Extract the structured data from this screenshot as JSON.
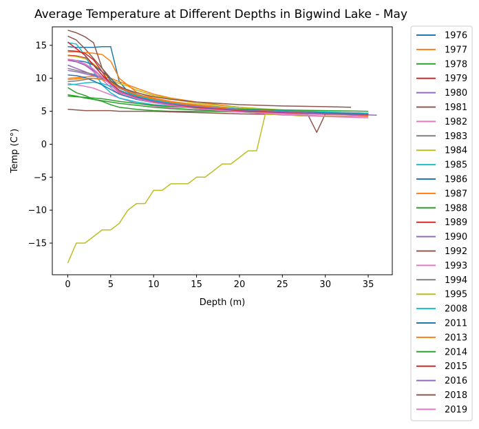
{
  "chart_data": {
    "type": "line",
    "title": "Average Temperature at Different Depths in Bigwind Lake - May",
    "xlabel": "Depth (m)",
    "ylabel": "Temp (C°)",
    "xlim": [
      -1.8,
      37.8
    ],
    "ylim": [
      -19.8,
      17.8
    ],
    "xticks": [
      0,
      5,
      10,
      15,
      20,
      25,
      30,
      35
    ],
    "yticks": [
      -15,
      -10,
      -5,
      0,
      5,
      10,
      15
    ],
    "xtick_labels": [
      "0",
      "5",
      "10",
      "15",
      "20",
      "25",
      "30",
      "35"
    ],
    "ytick_labels": [
      "−15",
      "−10",
      "−5",
      "0",
      "5",
      "10",
      "15"
    ],
    "grid": false,
    "legend_position": "outside-right",
    "series": [
      {
        "name": "1976",
        "color": "#1f77b4",
        "x": [
          0,
          1,
          2,
          3,
          4,
          5,
          6,
          7,
          8,
          10,
          12,
          15,
          20,
          25,
          30,
          35
        ],
        "y": [
          14.8,
          14.7,
          14.7,
          14.7,
          14.8,
          14.8,
          9.5,
          8.0,
          7.2,
          6.6,
          6.2,
          5.7,
          5.3,
          5.0,
          4.8,
          4.7
        ]
      },
      {
        "name": "1977",
        "color": "#ff7f0e",
        "x": [
          0,
          1,
          2,
          3,
          4,
          5,
          6,
          7,
          8,
          10,
          12,
          15,
          20,
          25,
          30,
          35
        ],
        "y": [
          10.0,
          10.1,
          10.2,
          10.3,
          10.2,
          10.0,
          9.5,
          9.0,
          8.5,
          7.6,
          7.0,
          6.4,
          5.6,
          5.1,
          4.7,
          4.4
        ]
      },
      {
        "name": "1978",
        "color": "#2ca02c",
        "x": [
          0,
          1,
          2,
          3,
          4,
          5,
          6,
          8,
          10,
          12,
          15,
          20,
          25,
          30,
          35
        ],
        "y": [
          8.6,
          7.8,
          7.4,
          6.8,
          6.5,
          6.0,
          5.6,
          5.3,
          5.1,
          5.0,
          5.0,
          4.9,
          4.8,
          4.7,
          4.6
        ]
      },
      {
        "name": "1979",
        "color": "#d62728",
        "x": [
          0,
          1,
          2,
          3,
          4,
          5,
          6,
          8,
          10,
          12,
          15,
          20,
          25,
          30,
          35
        ],
        "y": [
          13.5,
          13.4,
          13.1,
          12.0,
          10.5,
          9.2,
          8.2,
          7.2,
          6.6,
          6.2,
          5.8,
          5.3,
          5.0,
          4.8,
          4.7
        ]
      },
      {
        "name": "1980",
        "color": "#9467bd",
        "x": [
          0,
          1,
          2,
          3,
          4,
          5,
          6,
          8,
          10,
          12,
          15,
          20,
          25,
          30,
          35
        ],
        "y": [
          12.0,
          11.5,
          11.0,
          10.5,
          10.0,
          9.3,
          8.5,
          7.4,
          6.7,
          6.3,
          5.8,
          5.3,
          5.0,
          4.8,
          4.6
        ]
      },
      {
        "name": "1981",
        "color": "#8c564b",
        "x": [
          0,
          1,
          2,
          3,
          4,
          5,
          6,
          8,
          10,
          12,
          15,
          20,
          25,
          30,
          35
        ],
        "y": [
          16.4,
          15.8,
          14.5,
          13.0,
          11.5,
          10.0,
          8.7,
          7.5,
          6.8,
          6.3,
          5.9,
          5.3,
          5.0,
          4.8,
          4.6
        ]
      },
      {
        "name": "1982",
        "color": "#e377c2",
        "x": [
          0,
          1,
          2,
          3,
          4,
          5,
          6,
          8,
          10,
          12,
          15,
          20,
          25,
          30,
          35
        ],
        "y": [
          9.2,
          9.0,
          8.8,
          8.5,
          8.0,
          7.5,
          7.0,
          6.2,
          5.8,
          5.5,
          5.2,
          4.9,
          4.7,
          4.5,
          4.4
        ]
      },
      {
        "name": "1983",
        "color": "#7f7f7f",
        "x": [
          0,
          1,
          2,
          3,
          4,
          5,
          6,
          8,
          10,
          12,
          15,
          20,
          25,
          30,
          35
        ],
        "y": [
          11.5,
          11.2,
          10.9,
          10.6,
          10.2,
          9.6,
          8.8,
          7.6,
          6.9,
          6.4,
          5.9,
          5.4,
          5.0,
          4.8,
          4.7
        ]
      },
      {
        "name": "1984",
        "color": "#bcbd22",
        "x": [
          0,
          1,
          2,
          3,
          4,
          5,
          6,
          7,
          8,
          10,
          12,
          15,
          20,
          25,
          30,
          35
        ],
        "y": [
          13.4,
          13.3,
          13.0,
          12.2,
          11.0,
          9.8,
          9.2,
          8.8,
          8.2,
          7.4,
          6.9,
          6.2,
          5.6,
          5.2,
          4.9,
          4.7
        ]
      },
      {
        "name": "1985",
        "color": "#17becf",
        "x": [
          0,
          1,
          2,
          3,
          4,
          5,
          6,
          8,
          10,
          12,
          15,
          20,
          25,
          30,
          35
        ],
        "y": [
          15.4,
          15.2,
          13.5,
          11.0,
          9.0,
          7.8,
          7.0,
          6.4,
          6.0,
          5.8,
          5.5,
          5.1,
          4.9,
          4.7,
          4.6
        ]
      },
      {
        "name": "1986",
        "color": "#1f77b4",
        "x": [
          0,
          1,
          2,
          3,
          4,
          5,
          6,
          8,
          10,
          12,
          15,
          20,
          25,
          30,
          35
        ],
        "y": [
          12.8,
          12.7,
          12.5,
          12.0,
          11.0,
          10.0,
          8.6,
          7.3,
          6.6,
          6.2,
          5.8,
          5.3,
          5.0,
          4.8,
          4.6
        ]
      },
      {
        "name": "1987",
        "color": "#ff7f0e",
        "x": [
          0,
          1,
          2,
          3,
          4,
          5,
          6,
          8,
          10,
          12,
          15,
          20,
          25,
          30,
          35
        ],
        "y": [
          14.0,
          14.0,
          13.9,
          13.8,
          13.6,
          12.6,
          10.0,
          7.9,
          7.0,
          6.5,
          6.0,
          5.4,
          5.0,
          4.8,
          4.6
        ]
      },
      {
        "name": "1988",
        "color": "#2ca02c",
        "x": [
          0,
          1,
          2,
          3,
          4,
          5,
          6,
          8,
          10,
          12,
          15,
          20,
          25,
          30,
          35
        ],
        "y": [
          7.5,
          7.3,
          7.0,
          6.8,
          6.6,
          6.4,
          6.2,
          5.9,
          5.6,
          5.4,
          5.2,
          5.0,
          4.9,
          4.8,
          4.7
        ]
      },
      {
        "name": "1989",
        "color": "#d62728",
        "x": [
          0,
          1,
          2,
          3,
          4,
          5,
          6,
          8,
          10,
          12,
          15,
          20,
          25,
          30,
          35
        ],
        "y": [
          14.2,
          14.1,
          13.8,
          12.8,
          11.0,
          9.0,
          7.8,
          7.0,
          6.5,
          6.1,
          5.7,
          5.3,
          5.0,
          4.8,
          4.6
        ]
      },
      {
        "name": "1990",
        "color": "#9467bd",
        "x": [
          0,
          1,
          2,
          3,
          4,
          5,
          6,
          8,
          10,
          12,
          15,
          20,
          25,
          30,
          36
        ],
        "y": [
          11.2,
          11.0,
          10.7,
          10.4,
          10.0,
          9.4,
          8.6,
          7.4,
          6.8,
          6.3,
          5.8,
          5.2,
          4.8,
          4.6,
          4.4
        ]
      },
      {
        "name": "1992",
        "color": "#8c564b",
        "x": [
          0,
          1,
          2,
          3,
          4,
          5,
          6,
          8,
          10,
          12,
          15,
          20,
          25,
          28,
          29,
          30,
          35
        ],
        "y": [
          5.3,
          5.2,
          5.1,
          5.1,
          5.1,
          5.1,
          5.0,
          5.0,
          5.0,
          4.9,
          4.8,
          4.6,
          4.5,
          4.4,
          1.8,
          4.6,
          4.5
        ]
      },
      {
        "name": "1993",
        "color": "#e377c2",
        "x": [
          0,
          1,
          2,
          3,
          4,
          5,
          6,
          8,
          10,
          12,
          15,
          20,
          25,
          30,
          35
        ],
        "y": [
          12.7,
          12.5,
          12.0,
          11.0,
          9.8,
          8.6,
          7.6,
          6.8,
          6.3,
          6.0,
          5.5,
          4.9,
          4.5,
          4.3,
          4.2
        ]
      },
      {
        "name": "1994",
        "color": "#7f7f7f",
        "x": [
          0,
          1,
          2,
          3,
          4,
          5,
          6,
          8,
          10,
          12,
          15,
          20,
          25,
          30,
          35
        ],
        "y": [
          9.5,
          9.6,
          9.8,
          10.0,
          9.9,
          9.4,
          8.6,
          7.4,
          6.8,
          6.3,
          5.8,
          5.2,
          4.9,
          4.7,
          4.6
        ]
      },
      {
        "name": "1995",
        "color": "#bcbd22",
        "x": [
          0,
          1,
          2,
          3,
          4,
          5,
          6,
          7,
          8,
          9,
          10,
          11,
          12,
          13,
          14,
          15,
          16,
          17,
          18,
          19,
          20,
          21,
          22,
          23,
          24,
          25,
          26,
          27,
          28,
          29,
          30,
          31,
          32,
          33
        ],
        "y": [
          -18,
          -15,
          -15,
          -14,
          -13,
          -13,
          -12,
          -10,
          -9,
          -9,
          -7,
          -7,
          -6,
          -6,
          -6,
          -5,
          -5,
          -4,
          -3,
          -3,
          -2,
          -1,
          -1,
          4.5,
          4.5,
          4.4,
          4.4,
          4.3,
          4.3,
          4.3,
          4.3,
          4.2,
          4.2,
          4.2
        ]
      },
      {
        "name": "2008",
        "color": "#17becf",
        "x": [
          0,
          1,
          2,
          3,
          4,
          5,
          6,
          8,
          10,
          12,
          15,
          20,
          25,
          30,
          35
        ],
        "y": [
          9.0,
          9.1,
          9.3,
          9.4,
          9.2,
          8.8,
          8.2,
          7.3,
          6.7,
          6.3,
          5.9,
          5.4,
          5.1,
          4.9,
          4.7
        ]
      },
      {
        "name": "2011",
        "color": "#1f77b4",
        "x": [
          0,
          1,
          2,
          3,
          4,
          5,
          6,
          8,
          10,
          12,
          15,
          20,
          25,
          30,
          35
        ],
        "y": [
          10.5,
          10.4,
          10.1,
          9.6,
          9.0,
          8.3,
          7.6,
          6.8,
          6.3,
          6.0,
          5.6,
          5.2,
          4.9,
          4.7,
          4.5
        ]
      },
      {
        "name": "2013",
        "color": "#ff7f0e",
        "x": [
          0,
          1,
          2,
          3,
          4,
          5,
          6,
          8,
          10,
          12,
          15,
          20,
          25,
          30,
          35
        ],
        "y": [
          9.8,
          9.9,
          10.0,
          10.0,
          9.8,
          9.3,
          8.6,
          7.5,
          6.9,
          6.4,
          5.9,
          5.3,
          4.9,
          4.6,
          4.3
        ]
      },
      {
        "name": "2014",
        "color": "#2ca02c",
        "x": [
          0,
          1,
          2,
          3,
          4,
          5,
          6,
          8,
          10,
          12,
          15,
          20,
          25,
          30,
          35
        ],
        "y": [
          7.3,
          7.2,
          7.1,
          7.0,
          6.9,
          6.7,
          6.5,
          6.2,
          5.9,
          5.7,
          5.5,
          5.3,
          5.2,
          5.1,
          5.0
        ]
      },
      {
        "name": "2015",
        "color": "#d62728",
        "x": [
          0,
          1,
          2,
          3,
          4,
          5,
          6,
          8,
          10,
          12,
          15,
          20,
          25,
          30,
          35
        ],
        "y": [
          15.5,
          14.5,
          13.5,
          12.0,
          10.5,
          9.2,
          8.1,
          7.0,
          6.4,
          6.0,
          5.6,
          5.1,
          4.8,
          4.6,
          4.5
        ]
      },
      {
        "name": "2016",
        "color": "#9467bd",
        "x": [
          0,
          1,
          2,
          3,
          4,
          5,
          6,
          8,
          10,
          12,
          15,
          20,
          25,
          30,
          35
        ],
        "y": [
          12.8,
          12.5,
          12.0,
          11.2,
          10.2,
          9.1,
          8.0,
          7.0,
          6.5,
          6.1,
          5.7,
          5.2,
          4.9,
          4.6,
          4.4
        ]
      },
      {
        "name": "2018",
        "color": "#8c564b",
        "x": [
          0,
          1,
          2,
          3,
          4,
          5,
          6,
          8,
          10,
          12,
          15,
          20,
          25,
          30,
          33
        ],
        "y": [
          17.3,
          16.9,
          16.3,
          15.4,
          11.5,
          9.6,
          8.7,
          7.8,
          7.2,
          6.8,
          6.4,
          6.0,
          5.8,
          5.7,
          5.6
        ]
      },
      {
        "name": "2019",
        "color": "#e377c2",
        "x": [
          0,
          1,
          2,
          3,
          4,
          5,
          6,
          8,
          10,
          12,
          15,
          20,
          25,
          30,
          35
        ],
        "y": [
          12.9,
          12.7,
          12.2,
          11.4,
          10.2,
          9.0,
          7.9,
          6.9,
          6.3,
          5.9,
          5.4,
          4.9,
          4.5,
          4.2,
          4.0
        ]
      }
    ]
  }
}
